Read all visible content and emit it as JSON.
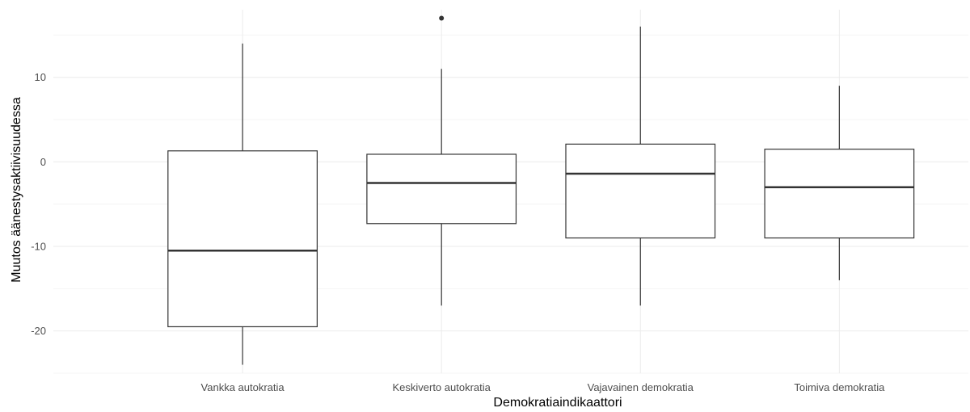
{
  "chart_data": {
    "type": "boxplot",
    "xlabel": "Demokratiaindikaattori",
    "ylabel": "Muutos äänestysaktiivisuudessa",
    "ylim": [
      -25,
      18
    ],
    "yticks": [
      -20,
      -10,
      0,
      10
    ],
    "ytick_labels": [
      "-20",
      "-10",
      "0",
      "10"
    ],
    "grid": true,
    "categories": [
      "Vankka autokratia",
      "Keskiverto autokratia",
      "Vajavainen demokratia",
      "Toimiva demokratia"
    ],
    "boxes": [
      {
        "category": "Vankka autokratia",
        "min": -24,
        "q1": -19.5,
        "median": -10.5,
        "q3": 1.3,
        "max": 14,
        "outliers": []
      },
      {
        "category": "Keskiverto autokratia",
        "min": -17,
        "q1": -7.3,
        "median": -2.5,
        "q3": 0.9,
        "max": 11,
        "outliers": [
          17
        ]
      },
      {
        "category": "Vajavainen demokratia",
        "min": -17,
        "q1": -9,
        "median": -1.4,
        "q3": 2.1,
        "max": 16,
        "outliers": []
      },
      {
        "category": "Toimiva demokratia",
        "min": -14,
        "q1": -9,
        "median": -3,
        "q3": 1.5,
        "max": 9,
        "outliers": []
      }
    ]
  }
}
